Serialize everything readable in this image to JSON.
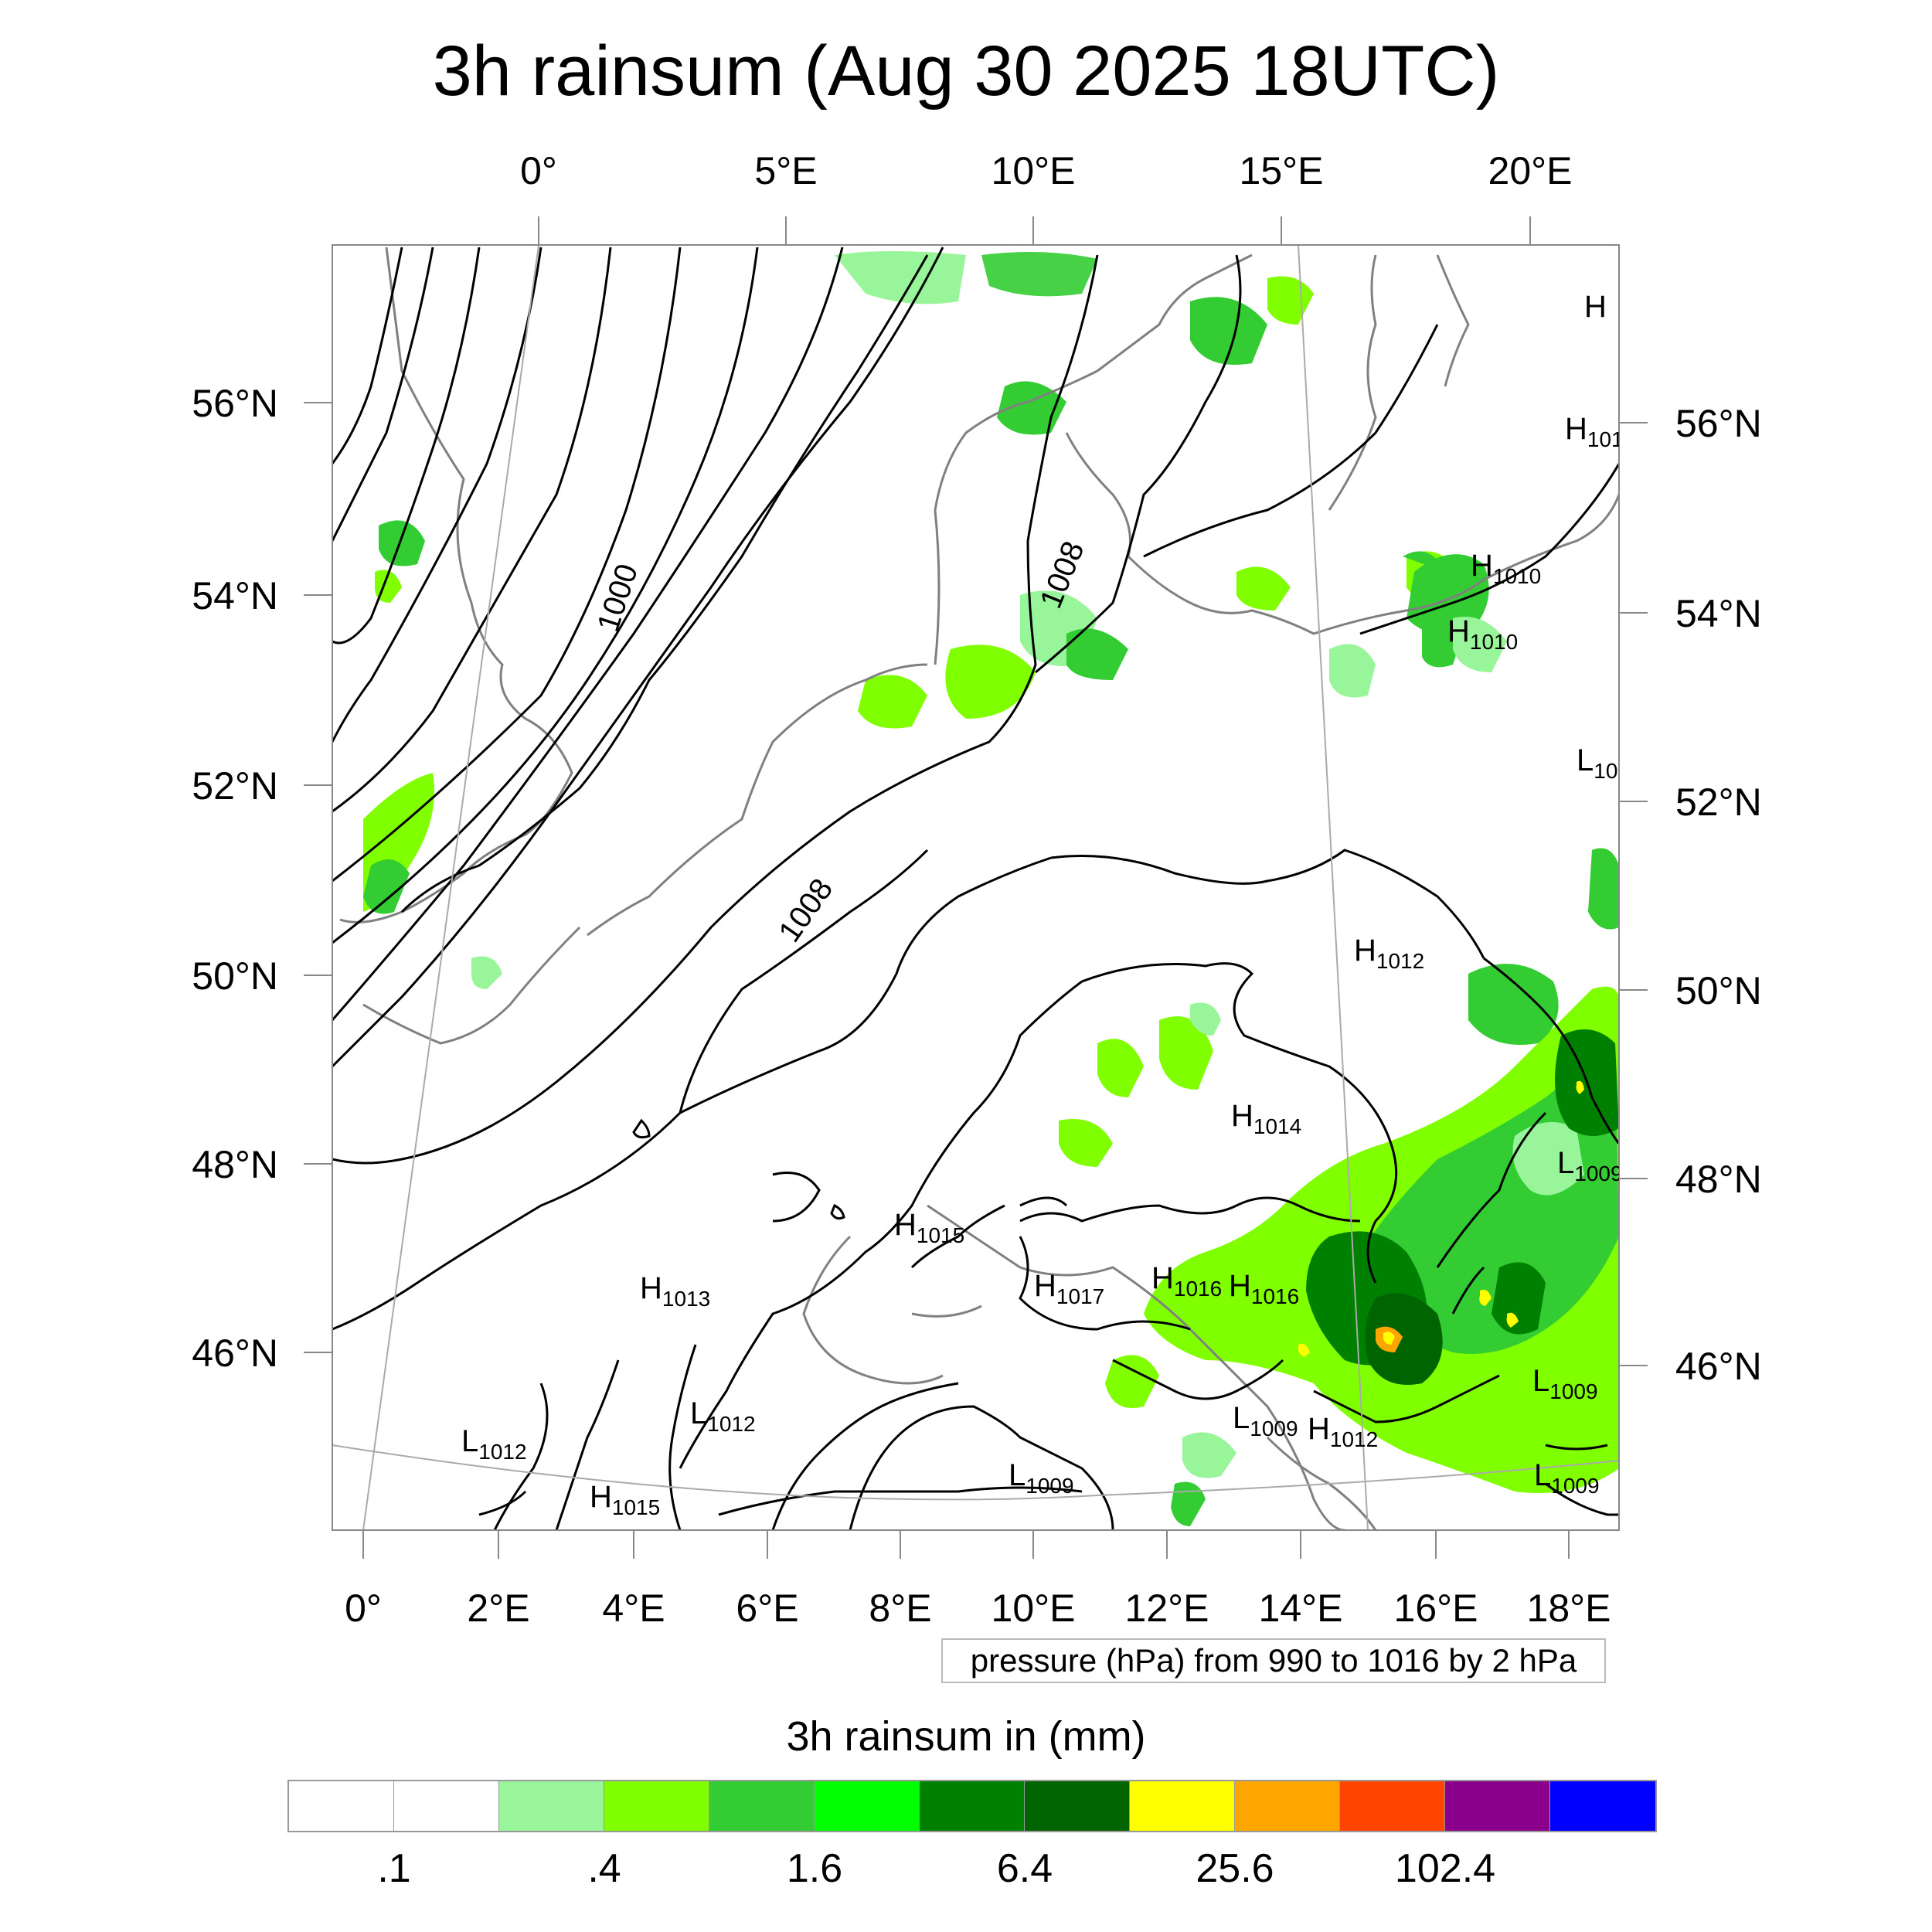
{
  "title": "3h rainsum (Aug 30 2025 18UTC)",
  "top_longitude_labels": [
    "0°",
    "5°E",
    "10°E",
    "15°E",
    "20°E"
  ],
  "bottom_longitude_labels": [
    "0°",
    "2°E",
    "4°E",
    "6°E",
    "8°E",
    "10°E",
    "12°E",
    "14°E",
    "16°E",
    "18°E"
  ],
  "left_latitude_labels": [
    "56°N",
    "54°N",
    "52°N",
    "50°N",
    "48°N",
    "46°N"
  ],
  "right_latitude_labels": [
    "56°N",
    "54°N",
    "52°N",
    "50°N",
    "48°N",
    "46°N"
  ],
  "contour_labels": [
    "1000",
    "1008",
    "1008"
  ],
  "pressure_centers": [
    {
      "type": "H",
      "value": ""
    },
    {
      "type": "H",
      "value": "101"
    },
    {
      "type": "H",
      "value": "1010"
    },
    {
      "type": "H",
      "value": "1010"
    },
    {
      "type": "L",
      "value": "10"
    },
    {
      "type": "H",
      "value": "1012"
    },
    {
      "type": "H",
      "value": "1014"
    },
    {
      "type": "L",
      "value": "1009"
    },
    {
      "type": "H",
      "value": "1015"
    },
    {
      "type": "H",
      "value": "1013"
    },
    {
      "type": "H",
      "value": "1017"
    },
    {
      "type": "H",
      "value": "1016"
    },
    {
      "type": "H",
      "value": "1016"
    },
    {
      "type": "L",
      "value": "1012"
    },
    {
      "type": "L",
      "value": "1012"
    },
    {
      "type": "L",
      "value": "1009"
    },
    {
      "type": "L",
      "value": "1009"
    },
    {
      "type": "H",
      "value": "1012"
    },
    {
      "type": "H",
      "value": "1015"
    },
    {
      "type": "L",
      "value": "1009"
    },
    {
      "type": "L",
      "value": "1009"
    }
  ],
  "pressure_info": "pressure (hPa) from 990 to 1016 by 2 hPa",
  "legend": {
    "title": "3h rainsum in (mm)",
    "colors": [
      "#ffffff",
      "#ffffff",
      "#99f599",
      "#80ff00",
      "#33cc33",
      "#00ff00",
      "#008000",
      "#006400",
      "#ffff00",
      "#ffa500",
      "#ff4500",
      "#8b008b",
      "#0000ff"
    ],
    "tick_labels": [
      ".1",
      ".4",
      "1.6",
      "6.4",
      "25.6",
      "102.4"
    ]
  },
  "colors": {
    "coastline": "#808080",
    "isobar": "#000000",
    "graticule": "#aaaaaa"
  }
}
